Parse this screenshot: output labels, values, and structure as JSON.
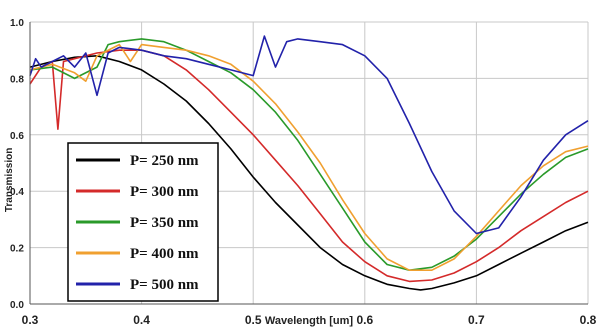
{
  "chart_data": {
    "type": "line",
    "title": "",
    "xlabel": "Wavelength [um]",
    "ylabel": "Transmission",
    "xlim": [
      0.3,
      0.8
    ],
    "ylim": [
      0.0,
      1.0
    ],
    "x_ticks": [
      "0.3",
      "0.4",
      "0.5",
      "0.6",
      "0.7",
      "0.8"
    ],
    "y_ticks": [
      "0.0",
      "0.2",
      "0.4",
      "0.6",
      "0.8",
      "1.0"
    ],
    "x_tick_values": [
      0.3,
      0.4,
      0.5,
      0.6,
      0.7,
      0.8
    ],
    "y_tick_values": [
      0.0,
      0.2,
      0.4,
      0.6,
      0.8,
      1.0
    ],
    "grid": true,
    "legend_position": "bottom-left",
    "series": [
      {
        "name": "P= 250 nm",
        "color": "#000000",
        "x": [
          0.3,
          0.32,
          0.34,
          0.36,
          0.38,
          0.4,
          0.42,
          0.44,
          0.46,
          0.48,
          0.5,
          0.52,
          0.54,
          0.56,
          0.58,
          0.6,
          0.62,
          0.64,
          0.65,
          0.66,
          0.68,
          0.7,
          0.72,
          0.74,
          0.76,
          0.78,
          0.8
        ],
        "y": [
          0.84,
          0.86,
          0.875,
          0.88,
          0.86,
          0.83,
          0.78,
          0.72,
          0.64,
          0.55,
          0.45,
          0.36,
          0.28,
          0.2,
          0.14,
          0.1,
          0.07,
          0.055,
          0.05,
          0.055,
          0.075,
          0.1,
          0.14,
          0.18,
          0.22,
          0.26,
          0.29
        ]
      },
      {
        "name": "P= 300 nm",
        "color": "#d42a2a",
        "x": [
          0.3,
          0.31,
          0.32,
          0.325,
          0.33,
          0.34,
          0.36,
          0.38,
          0.4,
          0.42,
          0.44,
          0.46,
          0.48,
          0.5,
          0.52,
          0.54,
          0.56,
          0.58,
          0.6,
          0.62,
          0.64,
          0.66,
          0.68,
          0.7,
          0.72,
          0.74,
          0.76,
          0.78,
          0.8
        ],
        "y": [
          0.78,
          0.84,
          0.86,
          0.62,
          0.86,
          0.87,
          0.89,
          0.9,
          0.9,
          0.88,
          0.83,
          0.76,
          0.68,
          0.6,
          0.51,
          0.42,
          0.32,
          0.22,
          0.15,
          0.1,
          0.08,
          0.085,
          0.11,
          0.15,
          0.2,
          0.26,
          0.31,
          0.36,
          0.4
        ]
      },
      {
        "name": "P= 350 nm",
        "color": "#2a9a2a",
        "x": [
          0.3,
          0.32,
          0.34,
          0.36,
          0.37,
          0.38,
          0.4,
          0.42,
          0.44,
          0.46,
          0.48,
          0.5,
          0.52,
          0.54,
          0.56,
          0.58,
          0.6,
          0.62,
          0.64,
          0.66,
          0.68,
          0.7,
          0.72,
          0.74,
          0.76,
          0.78,
          0.8
        ],
        "y": [
          0.83,
          0.84,
          0.8,
          0.84,
          0.92,
          0.93,
          0.94,
          0.93,
          0.9,
          0.86,
          0.82,
          0.76,
          0.68,
          0.58,
          0.46,
          0.34,
          0.22,
          0.14,
          0.12,
          0.13,
          0.17,
          0.23,
          0.31,
          0.39,
          0.46,
          0.52,
          0.55
        ]
      },
      {
        "name": "P= 400 nm",
        "color": "#f0a030",
        "x": [
          0.3,
          0.32,
          0.34,
          0.35,
          0.36,
          0.38,
          0.39,
          0.4,
          0.42,
          0.44,
          0.46,
          0.48,
          0.5,
          0.52,
          0.54,
          0.56,
          0.58,
          0.6,
          0.62,
          0.64,
          0.66,
          0.68,
          0.7,
          0.72,
          0.74,
          0.76,
          0.78,
          0.8
        ],
        "y": [
          0.83,
          0.85,
          0.82,
          0.79,
          0.88,
          0.92,
          0.86,
          0.92,
          0.91,
          0.9,
          0.88,
          0.85,
          0.79,
          0.71,
          0.61,
          0.5,
          0.37,
          0.25,
          0.16,
          0.12,
          0.12,
          0.16,
          0.24,
          0.33,
          0.42,
          0.49,
          0.54,
          0.56
        ]
      },
      {
        "name": "P= 500 nm",
        "color": "#2222aa",
        "x": [
          0.3,
          0.305,
          0.31,
          0.32,
          0.33,
          0.34,
          0.35,
          0.36,
          0.37,
          0.38,
          0.4,
          0.42,
          0.44,
          0.46,
          0.48,
          0.5,
          0.51,
          0.52,
          0.53,
          0.54,
          0.56,
          0.58,
          0.6,
          0.62,
          0.64,
          0.66,
          0.68,
          0.7,
          0.72,
          0.74,
          0.76,
          0.78,
          0.8
        ],
        "y": [
          0.81,
          0.87,
          0.84,
          0.86,
          0.88,
          0.84,
          0.89,
          0.74,
          0.89,
          0.91,
          0.9,
          0.88,
          0.87,
          0.85,
          0.83,
          0.81,
          0.95,
          0.84,
          0.93,
          0.94,
          0.93,
          0.92,
          0.88,
          0.8,
          0.64,
          0.47,
          0.33,
          0.25,
          0.27,
          0.38,
          0.51,
          0.6,
          0.65
        ]
      }
    ]
  }
}
